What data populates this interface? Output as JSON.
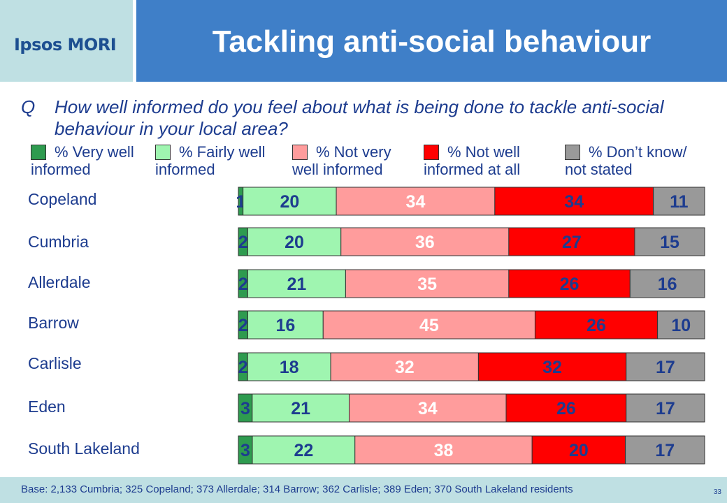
{
  "header": {
    "logo": "Ipsos MORI",
    "title": "Tackling anti-social behaviour"
  },
  "question": {
    "marker": "Q",
    "text": "How well informed do you feel about what is being done to tackle anti-social behaviour in your local area?"
  },
  "colors": {
    "very_well": "#2e9b4f",
    "fairly_well": "#9ff5b0",
    "not_very": "#ff9c9c",
    "not_well": "#ff0000",
    "dont_know": "#999999",
    "text_blue": "#1d3c8f",
    "header_blue": "#3f7fc8",
    "accent_light": "#bfe0e3"
  },
  "chart_data": {
    "type": "bar",
    "orientation": "horizontal",
    "stacked": true,
    "xlim": [
      0,
      100
    ],
    "categories": [
      "Copeland",
      "Cumbria",
      "Allerdale",
      "Barrow",
      "Carlisle",
      "Eden",
      "South Lakeland"
    ],
    "series": [
      {
        "name": "% Very well informed",
        "line1": "% Very well",
        "line2": "informed",
        "values": [
          1,
          2,
          2,
          2,
          2,
          3,
          3
        ],
        "label_color": "#1d3c8f"
      },
      {
        "name": "% Fairly well informed",
        "line1": "% Fairly well",
        "line2": "informed",
        "values": [
          20,
          20,
          21,
          16,
          18,
          21,
          22
        ],
        "label_color": "#1d3c8f"
      },
      {
        "name": "% Not very well informed",
        "line1": "% Not very",
        "line2": "well informed",
        "values": [
          34,
          36,
          35,
          45,
          32,
          34,
          38
        ],
        "label_color": "#ffffff"
      },
      {
        "name": "% Not well informed at all",
        "line1": "% Not well",
        "line2": "informed at all",
        "values": [
          34,
          27,
          26,
          26,
          32,
          26,
          20
        ],
        "label_color": "#1d3c8f"
      },
      {
        "name": "% Don’t know/ not stated",
        "line1": "% Don’t know/",
        "line2": "not stated",
        "values": [
          11,
          15,
          16,
          10,
          17,
          17,
          17
        ],
        "label_color": "#1d3c8f"
      }
    ],
    "legend_position": "top"
  },
  "footer": {
    "base": "Base: 2,133 Cumbria; 325 Copeland; 373 Allerdale; 314 Barrow; 362 Carlisle; 389 Eden; 370 South Lakeland residents",
    "page": "33"
  }
}
